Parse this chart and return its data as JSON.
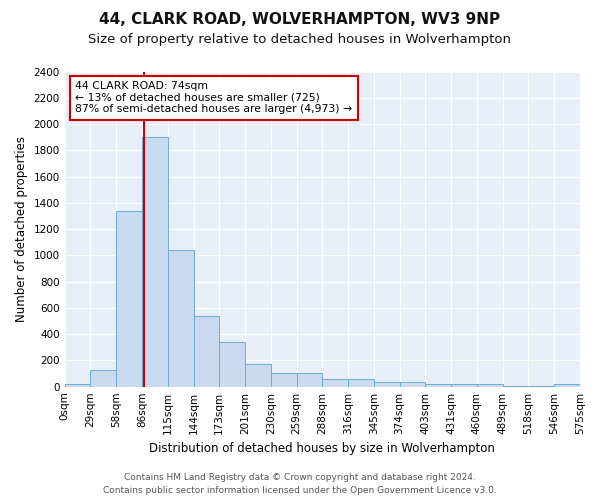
{
  "title1": "44, CLARK ROAD, WOLVERHAMPTON, WV3 9NP",
  "title2": "Size of property relative to detached houses in Wolverhampton",
  "xlabel": "Distribution of detached houses by size in Wolverhampton",
  "ylabel": "Number of detached properties",
  "bar_values": [
    20,
    130,
    1340,
    1900,
    1040,
    540,
    340,
    170,
    105,
    105,
    55,
    55,
    35,
    35,
    20,
    20,
    20,
    5,
    5,
    20
  ],
  "bin_labels": [
    "0sqm",
    "29sqm",
    "58sqm",
    "86sqm",
    "115sqm",
    "144sqm",
    "173sqm",
    "201sqm",
    "230sqm",
    "259sqm",
    "288sqm",
    "316sqm",
    "345sqm",
    "374sqm",
    "403sqm",
    "431sqm",
    "460sqm",
    "489sqm",
    "518sqm",
    "546sqm",
    "575sqm"
  ],
  "bar_color": "#c9d9f0",
  "bar_edge_color": "#6baed6",
  "vline_color": "#cc0000",
  "annotation_text": "44 CLARK ROAD: 74sqm\n← 13% of detached houses are smaller (725)\n87% of semi-detached houses are larger (4,973) →",
  "annotation_box_color": "#ffffff",
  "annotation_box_edge": "#cc0000",
  "ylim": [
    0,
    2400
  ],
  "yticks": [
    0,
    200,
    400,
    600,
    800,
    1000,
    1200,
    1400,
    1600,
    1800,
    2000,
    2200,
    2400
  ],
  "footer1": "Contains HM Land Registry data © Crown copyright and database right 2024.",
  "footer2": "Contains public sector information licensed under the Open Government Licence v3.0.",
  "bg_color": "#e8eef8",
  "grid_color": "#ffffff",
  "title1_fontsize": 11,
  "title2_fontsize": 9.5,
  "xlabel_fontsize": 8.5,
  "ylabel_fontsize": 8.5,
  "tick_fontsize": 7.5,
  "footer_fontsize": 6.5
}
